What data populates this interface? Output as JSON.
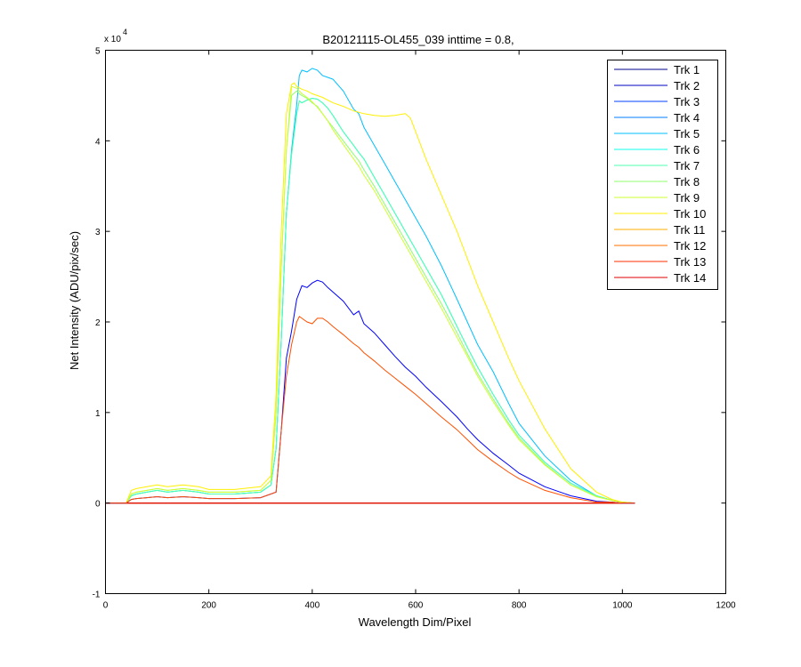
{
  "chart_data": {
    "type": "line",
    "title": "B20121115-OL455_039 inttime = 0.8,",
    "xlabel": "Wavelength Dim/Pixel",
    "ylabel": "Net Intensity (ADU/pix/sec)",
    "y_multiplier": "x 10",
    "y_exponent": "4",
    "xlim": [
      0,
      1200
    ],
    "ylim": [
      -1,
      5
    ],
    "xticks": [
      0,
      200,
      400,
      600,
      800,
      1000,
      1200
    ],
    "yticks": [
      -1,
      0,
      1,
      2,
      3,
      4,
      5
    ],
    "grid": false,
    "legend_position": "top-right",
    "series": [
      {
        "name": "Trk 1",
        "color": "#00008F",
        "x": [
          1,
          1024
        ],
        "y": [
          0,
          0
        ]
      },
      {
        "name": "Trk 2",
        "color": "#0000BF",
        "x": [
          1,
          1024
        ],
        "y": [
          0,
          0
        ]
      },
      {
        "name": "Trk 3",
        "color": "#003FFF",
        "x": [
          1,
          1024
        ],
        "y": [
          0,
          0
        ]
      },
      {
        "name": "Trk 4",
        "color": "#007FFF",
        "x": [
          1,
          1024
        ],
        "y": [
          0,
          0
        ]
      },
      {
        "name": "Trk 5",
        "color": "#00BFFF",
        "x": [
          1,
          40,
          50,
          60,
          80,
          100,
          120,
          150,
          180,
          200,
          250,
          300,
          320,
          330,
          340,
          350,
          360,
          370,
          375,
          380,
          390,
          400,
          410,
          420,
          430,
          440,
          460,
          480,
          490,
          500,
          520,
          540,
          560,
          580,
          600,
          620,
          650,
          680,
          700,
          720,
          750,
          780,
          800,
          850,
          900,
          950,
          980,
          1000,
          1024
        ],
        "y": [
          0,
          0,
          0.08,
          0.1,
          0.12,
          0.14,
          0.12,
          0.14,
          0.12,
          0.1,
          0.1,
          0.12,
          0.2,
          0.6,
          1.8,
          3.2,
          3.9,
          4.4,
          4.72,
          4.78,
          4.76,
          4.8,
          4.78,
          4.72,
          4.7,
          4.68,
          4.55,
          4.35,
          4.3,
          4.15,
          3.95,
          3.75,
          3.55,
          3.35,
          3.15,
          2.95,
          2.62,
          2.25,
          2.0,
          1.75,
          1.45,
          1.1,
          0.88,
          0.52,
          0.25,
          0.08,
          0.03,
          0.01,
          0
        ]
      },
      {
        "name": "Trk 6",
        "color": "#0FFFEF",
        "x": [
          1,
          40,
          50,
          60,
          80,
          100,
          120,
          150,
          180,
          200,
          250,
          300,
          320,
          330,
          340,
          350,
          360,
          370,
          375,
          380,
          390,
          400,
          410,
          420,
          430,
          440,
          460,
          480,
          490,
          500,
          520,
          540,
          560,
          580,
          600,
          620,
          650,
          680,
          700,
          720,
          750,
          780,
          800,
          850,
          900,
          950,
          980,
          1000,
          1024
        ],
        "y": [
          0,
          0,
          0.08,
          0.1,
          0.12,
          0.14,
          0.12,
          0.14,
          0.12,
          0.1,
          0.1,
          0.12,
          0.2,
          0.6,
          1.8,
          3.2,
          3.85,
          4.3,
          4.44,
          4.42,
          4.45,
          4.47,
          4.46,
          4.42,
          4.36,
          4.28,
          4.1,
          3.95,
          3.87,
          3.8,
          3.6,
          3.4,
          3.2,
          3.0,
          2.8,
          2.6,
          2.3,
          1.95,
          1.72,
          1.5,
          1.2,
          0.92,
          0.75,
          0.45,
          0.22,
          0.08,
          0.03,
          0.01,
          0
        ]
      },
      {
        "name": "Trk 7",
        "color": "#4FFFAF",
        "x": [
          1,
          40,
          50,
          60,
          80,
          100,
          120,
          150,
          180,
          200,
          250,
          300,
          320,
          330,
          340,
          350,
          360,
          370,
          375,
          380,
          390,
          400,
          410,
          420,
          430,
          440,
          460,
          480,
          490,
          500,
          520,
          540,
          560,
          580,
          600,
          620,
          650,
          680,
          700,
          720,
          750,
          780,
          800,
          850,
          900,
          950,
          980,
          1000,
          1024
        ],
        "y": [
          0,
          0,
          0.08,
          0.1,
          0.12,
          0.14,
          0.12,
          0.14,
          0.12,
          0.1,
          0.1,
          0.12,
          0.2,
          0.6,
          1.8,
          3.2,
          3.85,
          4.3,
          4.44,
          4.42,
          4.45,
          4.47,
          4.46,
          4.42,
          4.36,
          4.28,
          4.1,
          3.95,
          3.87,
          3.8,
          3.6,
          3.4,
          3.2,
          3.0,
          2.8,
          2.6,
          2.3,
          1.95,
          1.72,
          1.5,
          1.2,
          0.92,
          0.75,
          0.45,
          0.22,
          0.08,
          0.03,
          0.01,
          0
        ]
      },
      {
        "name": "Trk 8",
        "color": "#8FFF6F",
        "x": [
          1,
          40,
          50,
          60,
          80,
          100,
          120,
          150,
          180,
          200,
          250,
          300,
          320,
          330,
          340,
          350,
          360,
          370,
          375,
          380,
          390,
          400,
          410,
          420,
          430,
          440,
          460,
          480,
          490,
          500,
          520,
          540,
          560,
          580,
          600,
          620,
          650,
          680,
          700,
          720,
          750,
          780,
          800,
          850,
          900,
          950,
          980,
          1000,
          1024
        ],
        "y": [
          0,
          0,
          0.1,
          0.12,
          0.14,
          0.16,
          0.14,
          0.16,
          0.14,
          0.12,
          0.12,
          0.14,
          0.25,
          1.0,
          2.6,
          3.9,
          4.5,
          4.55,
          4.52,
          4.5,
          4.47,
          4.42,
          4.38,
          4.3,
          4.22,
          4.15,
          4.0,
          3.85,
          3.78,
          3.68,
          3.5,
          3.3,
          3.1,
          2.9,
          2.7,
          2.5,
          2.2,
          1.88,
          1.65,
          1.43,
          1.15,
          0.88,
          0.72,
          0.43,
          0.2,
          0.07,
          0.03,
          0.01,
          0
        ]
      },
      {
        "name": "Trk 9",
        "color": "#CFFF2F",
        "x": [
          1,
          40,
          50,
          60,
          80,
          100,
          120,
          150,
          180,
          200,
          250,
          300,
          320,
          330,
          340,
          350,
          360,
          370,
          375,
          380,
          390,
          400,
          410,
          420,
          430,
          440,
          460,
          480,
          490,
          500,
          520,
          540,
          560,
          580,
          600,
          620,
          650,
          680,
          700,
          720,
          750,
          780,
          800,
          850,
          900,
          950,
          980,
          1000,
          1024
        ],
        "y": [
          0,
          0,
          0.1,
          0.12,
          0.14,
          0.16,
          0.14,
          0.16,
          0.14,
          0.12,
          0.12,
          0.14,
          0.25,
          1.0,
          2.6,
          3.9,
          4.6,
          4.58,
          4.55,
          4.52,
          4.48,
          4.43,
          4.37,
          4.3,
          4.22,
          4.12,
          3.96,
          3.8,
          3.72,
          3.62,
          3.45,
          3.25,
          3.05,
          2.85,
          2.65,
          2.45,
          2.15,
          1.83,
          1.62,
          1.4,
          1.12,
          0.86,
          0.7,
          0.42,
          0.2,
          0.07,
          0.03,
          0.01,
          0
        ]
      },
      {
        "name": "Trk 10",
        "color": "#FFEF00",
        "x": [
          1,
          40,
          50,
          60,
          80,
          100,
          120,
          150,
          180,
          200,
          250,
          300,
          320,
          330,
          340,
          350,
          360,
          365,
          370,
          380,
          390,
          400,
          420,
          440,
          460,
          480,
          500,
          520,
          540,
          560,
          580,
          590,
          600,
          620,
          650,
          680,
          700,
          720,
          750,
          780,
          800,
          850,
          900,
          950,
          980,
          1000,
          1024
        ],
        "y": [
          0,
          0,
          0.14,
          0.16,
          0.18,
          0.2,
          0.18,
          0.2,
          0.18,
          0.15,
          0.15,
          0.18,
          0.3,
          1.2,
          3.0,
          4.3,
          4.62,
          4.64,
          4.6,
          4.57,
          4.55,
          4.52,
          4.48,
          4.42,
          4.38,
          4.33,
          4.3,
          4.28,
          4.27,
          4.28,
          4.3,
          4.25,
          4.1,
          3.8,
          3.4,
          3.0,
          2.7,
          2.4,
          2.0,
          1.6,
          1.35,
          0.82,
          0.38,
          0.12,
          0.04,
          0.01,
          0
        ]
      },
      {
        "name": "Trk 11",
        "color": "#FFAF00",
        "x": [
          1,
          1024
        ],
        "y": [
          0,
          0
        ]
      },
      {
        "name": "Trk 12",
        "color": "#FF6F00",
        "x": [
          1,
          1024
        ],
        "y": [
          0,
          0
        ]
      },
      {
        "name": "Trk 13",
        "color": "#FF2F00",
        "x": [
          1,
          1024
        ],
        "y": [
          0,
          0
        ]
      },
      {
        "name": "Trk 14",
        "color": "#DF0000",
        "x": [
          1,
          1024
        ],
        "y": [
          0,
          0
        ]
      },
      {
        "name": "",
        "color": "#0000FF",
        "x": [
          1,
          40,
          50,
          60,
          80,
          100,
          120,
          150,
          180,
          200,
          250,
          300,
          330,
          340,
          345,
          350,
          360,
          370,
          380,
          390,
          400,
          410,
          420,
          430,
          440,
          460,
          480,
          490,
          500,
          520,
          540,
          560,
          580,
          600,
          620,
          650,
          680,
          700,
          720,
          750,
          780,
          800,
          850,
          900,
          950,
          980,
          1000,
          1024
        ],
        "y": [
          0,
          0,
          0.04,
          0.05,
          0.06,
          0.07,
          0.06,
          0.07,
          0.06,
          0.05,
          0.05,
          0.06,
          0.12,
          0.8,
          1.2,
          1.6,
          1.9,
          2.25,
          2.4,
          2.38,
          2.43,
          2.46,
          2.44,
          2.38,
          2.33,
          2.23,
          2.08,
          2.12,
          1.98,
          1.88,
          1.75,
          1.62,
          1.5,
          1.4,
          1.28,
          1.12,
          0.95,
          0.82,
          0.7,
          0.55,
          0.42,
          0.33,
          0.18,
          0.08,
          0.02,
          0.01,
          0,
          0
        ]
      },
      {
        "name": "",
        "color": "#FF4F00",
        "x": [
          1,
          40,
          50,
          60,
          80,
          100,
          120,
          150,
          180,
          200,
          250,
          300,
          330,
          340,
          345,
          350,
          360,
          370,
          375,
          380,
          390,
          400,
          410,
          420,
          430,
          440,
          460,
          480,
          490,
          500,
          520,
          540,
          560,
          580,
          600,
          620,
          650,
          680,
          700,
          720,
          750,
          780,
          800,
          850,
          900,
          950,
          980,
          1000,
          1024
        ],
        "y": [
          0,
          0,
          0.04,
          0.05,
          0.06,
          0.07,
          0.06,
          0.07,
          0.06,
          0.05,
          0.05,
          0.06,
          0.12,
          0.8,
          1.1,
          1.4,
          1.75,
          2.0,
          2.06,
          2.04,
          2.0,
          1.98,
          2.04,
          2.04,
          2.0,
          1.95,
          1.86,
          1.76,
          1.72,
          1.66,
          1.57,
          1.47,
          1.38,
          1.29,
          1.2,
          1.1,
          0.95,
          0.81,
          0.7,
          0.59,
          0.46,
          0.34,
          0.27,
          0.14,
          0.06,
          0.01,
          0.01,
          0,
          0
        ]
      }
    ]
  }
}
